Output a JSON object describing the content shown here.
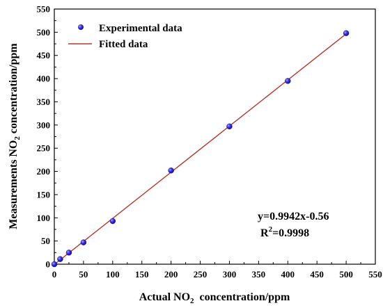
{
  "chart_data": {
    "type": "scatter",
    "xlabel": "Actual NO",
    "xlabel_sub": "2",
    "xlabel_tail": "  concentration/ppm",
    "ylabel": "Measurements NO",
    "ylabel_sub": "2",
    "ylabel_tail": " concentration/ppm",
    "xlim": [
      0,
      550
    ],
    "ylim": [
      0,
      550
    ],
    "xticks": [
      0,
      50,
      100,
      150,
      200,
      250,
      300,
      350,
      400,
      450,
      500,
      550
    ],
    "yticks": [
      0,
      50,
      100,
      150,
      200,
      250,
      300,
      350,
      400,
      450,
      500,
      550
    ],
    "grid": false,
    "legend_position": "top-left",
    "series": [
      {
        "name": "Experimental data",
        "kind": "scatter",
        "color": "#2a1fd6",
        "x": [
          0,
          10,
          25,
          50,
          100,
          200,
          300,
          400,
          500
        ],
        "y": [
          0,
          11,
          25,
          47,
          93,
          202,
          297,
          395,
          498
        ]
      },
      {
        "name": "Fitted data",
        "kind": "line",
        "color": "#b03a2e",
        "slope": 0.9942,
        "intercept": -0.56,
        "x_range": [
          0,
          500
        ]
      }
    ],
    "annotation": {
      "equation": "y=0.9942x-0.56",
      "r2_prefix": "R",
      "r2_sup": "2",
      "r2_value": "=0.9998"
    }
  }
}
